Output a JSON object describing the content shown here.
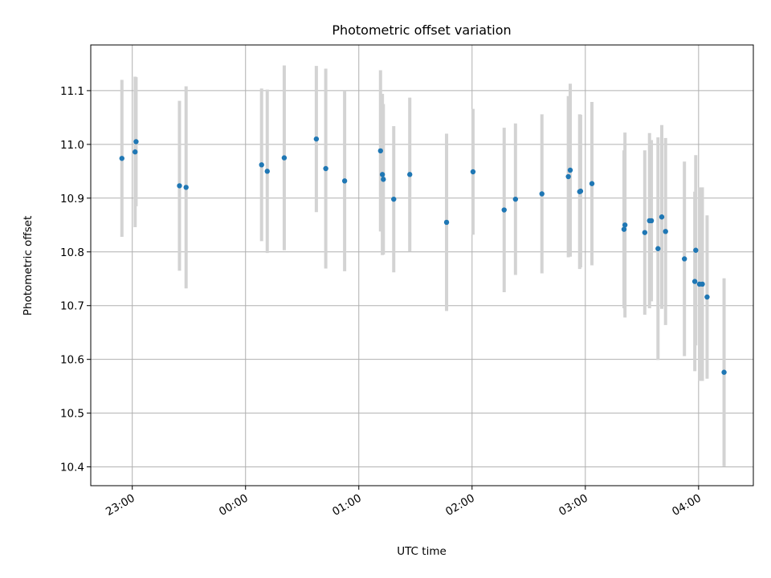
{
  "chart_data": {
    "type": "scatter",
    "title": "Photometric offset variation",
    "xlabel": "UTC time",
    "ylabel": "Photometric offset",
    "grid": true,
    "x_unit": "minutes after 23:00 UTC",
    "xlim": [
      -22,
      329
    ],
    "ylim": [
      10.365,
      11.185
    ],
    "x_ticks": [
      {
        "value": 0,
        "label": "23:00"
      },
      {
        "value": 60,
        "label": "00:00"
      },
      {
        "value": 120,
        "label": "01:00"
      },
      {
        "value": 180,
        "label": "02:00"
      },
      {
        "value": 240,
        "label": "03:00"
      },
      {
        "value": 300,
        "label": "04:00"
      }
    ],
    "y_ticks": [
      {
        "value": 10.4,
        "label": "10.4"
      },
      {
        "value": 10.5,
        "label": "10.5"
      },
      {
        "value": 10.6,
        "label": "10.6"
      },
      {
        "value": 10.7,
        "label": "10.7"
      },
      {
        "value": 10.8,
        "label": "10.8"
      },
      {
        "value": 10.9,
        "label": "10.9"
      },
      {
        "value": 11.0,
        "label": "11.0"
      },
      {
        "value": 11.1,
        "label": "11.1"
      }
    ],
    "point_color": "#1f77b4",
    "errorbar_color": "#d3d3d3",
    "points": [
      {
        "x": -5.5,
        "y": 10.974,
        "err": 0.146
      },
      {
        "x": 1.5,
        "y": 10.986,
        "err": 0.14
      },
      {
        "x": 2.0,
        "y": 11.005,
        "err": 0.12
      },
      {
        "x": 25.0,
        "y": 10.923,
        "err": 0.158
      },
      {
        "x": 28.5,
        "y": 10.92,
        "err": 0.188
      },
      {
        "x": 68.5,
        "y": 10.962,
        "err": 0.142
      },
      {
        "x": 71.5,
        "y": 10.95,
        "err": 0.152
      },
      {
        "x": 80.5,
        "y": 10.975,
        "err": 0.172
      },
      {
        "x": 97.5,
        "y": 11.01,
        "err": 0.136
      },
      {
        "x": 102.5,
        "y": 10.955,
        "err": 0.186
      },
      {
        "x": 112.5,
        "y": 10.932,
        "err": 0.168
      },
      {
        "x": 131.5,
        "y": 10.988,
        "err": 0.15
      },
      {
        "x": 132.5,
        "y": 10.944,
        "err": 0.15
      },
      {
        "x": 133.0,
        "y": 10.935,
        "err": 0.14
      },
      {
        "x": 138.5,
        "y": 10.898,
        "err": 0.136
      },
      {
        "x": 147.0,
        "y": 10.944,
        "err": 0.143
      },
      {
        "x": 166.5,
        "y": 10.855,
        "err": 0.165
      },
      {
        "x": 180.5,
        "y": 10.949,
        "err": 0.117
      },
      {
        "x": 197.0,
        "y": 10.878,
        "err": 0.153
      },
      {
        "x": 203.0,
        "y": 10.898,
        "err": 0.141
      },
      {
        "x": 217.0,
        "y": 10.908,
        "err": 0.148
      },
      {
        "x": 231.0,
        "y": 10.94,
        "err": 0.15
      },
      {
        "x": 232.0,
        "y": 10.952,
        "err": 0.161
      },
      {
        "x": 237.0,
        "y": 10.912,
        "err": 0.144
      },
      {
        "x": 237.5,
        "y": 10.913,
        "err": 0.142
      },
      {
        "x": 243.5,
        "y": 10.927,
        "err": 0.152
      },
      {
        "x": 260.5,
        "y": 10.842,
        "err": 0.147
      },
      {
        "x": 261.0,
        "y": 10.85,
        "err": 0.172
      },
      {
        "x": 271.5,
        "y": 10.836,
        "err": 0.153
      },
      {
        "x": 274.0,
        "y": 10.858,
        "err": 0.163
      },
      {
        "x": 275.0,
        "y": 10.858,
        "err": 0.15
      },
      {
        "x": 278.5,
        "y": 10.806,
        "err": 0.207
      },
      {
        "x": 280.5,
        "y": 10.865,
        "err": 0.171
      },
      {
        "x": 282.5,
        "y": 10.838,
        "err": 0.174
      },
      {
        "x": 292.5,
        "y": 10.787,
        "err": 0.181
      },
      {
        "x": 298.0,
        "y": 10.745,
        "err": 0.167
      },
      {
        "x": 298.5,
        "y": 10.803,
        "err": 0.177
      },
      {
        "x": 300.5,
        "y": 10.74,
        "err": 0.18
      },
      {
        "x": 302.0,
        "y": 10.74,
        "err": 0.18
      },
      {
        "x": 304.5,
        "y": 10.716,
        "err": 0.152
      },
      {
        "x": 313.5,
        "y": 10.576,
        "err": 0.175
      }
    ]
  }
}
